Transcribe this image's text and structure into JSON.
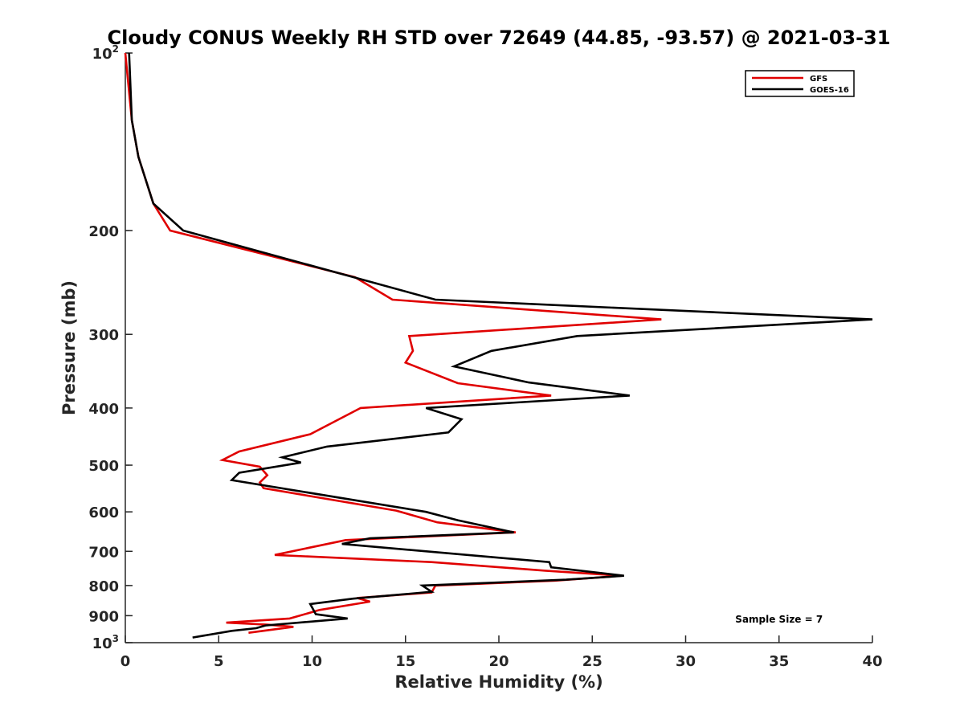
{
  "chart_data": {
    "type": "line",
    "title": "Cloudy CONUS Weekly RH STD over 72649 (44.85, -93.57) @ 2021-03-31",
    "xlabel": "Relative Humidity (%)",
    "ylabel": "Pressure (mb)",
    "xlim": [
      0,
      40
    ],
    "ylim": [
      100,
      1000
    ],
    "y_scale": "log",
    "y_reversed": true,
    "grid": false,
    "legend_position": "top-right",
    "x_ticks": [
      "0",
      "5",
      "10",
      "15",
      "20",
      "25",
      "30",
      "35",
      "40"
    ],
    "y_ticks": [
      {
        "value": 100,
        "label": "10",
        "sup": "2"
      },
      {
        "value": 200,
        "label": "200"
      },
      {
        "value": 300,
        "label": "300"
      },
      {
        "value": 400,
        "label": "400"
      },
      {
        "value": 500,
        "label": "500"
      },
      {
        "value": 600,
        "label": "600"
      },
      {
        "value": 700,
        "label": "700"
      },
      {
        "value": 800,
        "label": "800"
      },
      {
        "value": 900,
        "label": "900"
      },
      {
        "value": 1000,
        "label": "10",
        "sup": "3"
      }
    ],
    "series": [
      {
        "name": "GFS",
        "color": "#e00000",
        "points": [
          [
            0.0,
            100
          ],
          [
            0.35,
            130
          ],
          [
            0.7,
            150
          ],
          [
            1.5,
            180
          ],
          [
            2.4,
            200
          ],
          [
            12.3,
            240
          ],
          [
            14.3,
            262
          ],
          [
            28.7,
            283
          ],
          [
            15.2,
            302
          ],
          [
            15.4,
            320
          ],
          [
            15.0,
            335
          ],
          [
            17.8,
            363
          ],
          [
            22.8,
            381
          ],
          [
            12.6,
            400
          ],
          [
            9.9,
            443
          ],
          [
            6.1,
            474
          ],
          [
            5.2,
            490
          ],
          [
            7.2,
            503
          ],
          [
            7.6,
            520
          ],
          [
            7.2,
            535
          ],
          [
            7.4,
            547
          ],
          [
            14.5,
            597
          ],
          [
            16.7,
            625
          ],
          [
            20.9,
            650
          ],
          [
            11.8,
            670
          ],
          [
            8.0,
            710
          ],
          [
            16.4,
            730
          ],
          [
            22.5,
            755
          ],
          [
            26.6,
            770
          ],
          [
            23.0,
            785
          ],
          [
            16.6,
            800
          ],
          [
            16.4,
            822
          ],
          [
            12.4,
            840
          ],
          [
            13.1,
            852
          ],
          [
            10.4,
            880
          ],
          [
            8.8,
            910
          ],
          [
            5.4,
            925
          ],
          [
            7.6,
            932
          ],
          [
            9.0,
            940
          ],
          [
            6.6,
            962
          ]
        ]
      },
      {
        "name": "GOES-16",
        "color": "#000000",
        "points": [
          [
            0.2,
            100
          ],
          [
            0.35,
            130
          ],
          [
            0.7,
            150
          ],
          [
            1.5,
            180
          ],
          [
            3.1,
            200
          ],
          [
            16.6,
            262
          ],
          [
            40.0,
            283
          ],
          [
            24.2,
            302
          ],
          [
            19.6,
            320
          ],
          [
            17.6,
            340
          ],
          [
            21.6,
            362
          ],
          [
            27.0,
            381
          ],
          [
            16.1,
            400
          ],
          [
            18.0,
            418
          ],
          [
            17.3,
            440
          ],
          [
            10.8,
            465
          ],
          [
            8.4,
            485
          ],
          [
            9.4,
            495
          ],
          [
            6.1,
            515
          ],
          [
            5.7,
            530
          ],
          [
            16.1,
            600
          ],
          [
            17.8,
            620
          ],
          [
            20.8,
            650
          ],
          [
            13.1,
            665
          ],
          [
            11.6,
            680
          ],
          [
            22.7,
            730
          ],
          [
            22.8,
            745
          ],
          [
            26.7,
            770
          ],
          [
            23.6,
            782
          ],
          [
            15.9,
            800
          ],
          [
            16.4,
            820
          ],
          [
            12.2,
            842
          ],
          [
            9.9,
            860
          ],
          [
            10.2,
            895
          ],
          [
            11.9,
            910
          ],
          [
            7.5,
            935
          ],
          [
            7.0,
            945
          ],
          [
            5.7,
            955
          ],
          [
            3.6,
            980
          ]
        ]
      }
    ],
    "annotations": [
      {
        "text": "Sample Size = 7",
        "x": 35,
        "y": 910
      }
    ]
  }
}
